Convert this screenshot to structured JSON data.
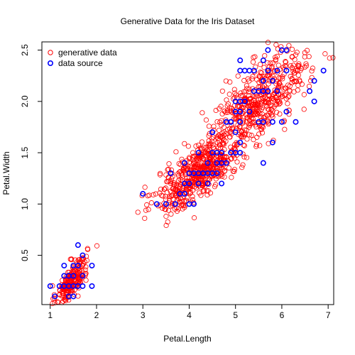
{
  "chart_data": {
    "type": "scatter",
    "title": "Generative Data for the Iris Dataset",
    "xlabel": "Petal.Length",
    "ylabel": "Petal.Width",
    "xlim": [
      0.82,
      7.12
    ],
    "ylim": [
      0.02,
      2.58
    ],
    "x_ticks": [
      1,
      2,
      3,
      4,
      5,
      6,
      7
    ],
    "y_ticks": [
      0.5,
      1.0,
      1.5,
      2.0,
      2.5
    ],
    "legend_position": "top-left",
    "series": [
      {
        "name": "generative data",
        "color": "#ff0000",
        "marker": "open-circle",
        "clusters": [
          {
            "cx": 1.46,
            "cy": 0.25,
            "sx": 0.17,
            "sy": 0.12,
            "n": 220
          },
          {
            "cx": 4.2,
            "cy": 1.3,
            "sx": 0.45,
            "sy": 0.18,
            "n": 500
          },
          {
            "cx": 5.5,
            "cy": 2.0,
            "sx": 0.55,
            "sy": 0.26,
            "n": 520
          }
        ]
      },
      {
        "name": "data source",
        "color": "#0000ff",
        "marker": "open-circle",
        "points": [
          [
            1.0,
            0.2
          ],
          [
            1.1,
            0.1
          ],
          [
            1.2,
            0.2
          ],
          [
            1.3,
            0.2
          ],
          [
            1.3,
            0.3
          ],
          [
            1.3,
            0.4
          ],
          [
            1.4,
            0.1
          ],
          [
            1.4,
            0.2
          ],
          [
            1.4,
            0.3
          ],
          [
            1.5,
            0.1
          ],
          [
            1.5,
            0.2
          ],
          [
            1.5,
            0.3
          ],
          [
            1.5,
            0.4
          ],
          [
            1.6,
            0.2
          ],
          [
            1.6,
            0.4
          ],
          [
            1.6,
            0.6
          ],
          [
            1.7,
            0.2
          ],
          [
            1.7,
            0.3
          ],
          [
            1.7,
            0.5
          ],
          [
            1.9,
            0.2
          ],
          [
            1.9,
            0.4
          ],
          [
            3.0,
            1.1
          ],
          [
            3.3,
            1.0
          ],
          [
            3.5,
            1.0
          ],
          [
            3.6,
            1.3
          ],
          [
            3.7,
            1.0
          ],
          [
            3.8,
            1.1
          ],
          [
            3.9,
            1.1
          ],
          [
            3.9,
            1.2
          ],
          [
            3.9,
            1.4
          ],
          [
            4.0,
            1.0
          ],
          [
            4.0,
            1.2
          ],
          [
            4.0,
            1.3
          ],
          [
            4.1,
            1.0
          ],
          [
            4.1,
            1.3
          ],
          [
            4.2,
            1.2
          ],
          [
            4.2,
            1.3
          ],
          [
            4.2,
            1.5
          ],
          [
            4.3,
            1.3
          ],
          [
            4.4,
            1.2
          ],
          [
            4.4,
            1.3
          ],
          [
            4.4,
            1.4
          ],
          [
            4.5,
            1.3
          ],
          [
            4.5,
            1.5
          ],
          [
            4.5,
            1.7
          ],
          [
            4.6,
            1.3
          ],
          [
            4.6,
            1.4
          ],
          [
            4.6,
            1.5
          ],
          [
            4.7,
            1.2
          ],
          [
            4.7,
            1.4
          ],
          [
            4.7,
            1.5
          ],
          [
            4.8,
            1.4
          ],
          [
            4.8,
            1.8
          ],
          [
            4.9,
            1.5
          ],
          [
            4.9,
            1.8
          ],
          [
            5.0,
            1.5
          ],
          [
            5.0,
            1.7
          ],
          [
            5.1,
            1.6
          ],
          [
            4.5,
            1.7
          ],
          [
            4.8,
            1.8
          ],
          [
            4.9,
            1.8
          ],
          [
            5.0,
            2.0
          ],
          [
            5.0,
            1.9
          ],
          [
            5.1,
            1.5
          ],
          [
            5.1,
            1.8
          ],
          [
            5.1,
            1.9
          ],
          [
            5.1,
            2.0
          ],
          [
            5.1,
            2.3
          ],
          [
            5.1,
            2.4
          ],
          [
            5.2,
            2.0
          ],
          [
            5.2,
            2.3
          ],
          [
            5.3,
            1.9
          ],
          [
            5.3,
            2.3
          ],
          [
            5.4,
            2.1
          ],
          [
            5.4,
            2.3
          ],
          [
            5.5,
            1.8
          ],
          [
            5.5,
            2.1
          ],
          [
            5.6,
            1.4
          ],
          [
            5.6,
            1.8
          ],
          [
            5.6,
            2.1
          ],
          [
            5.6,
            2.2
          ],
          [
            5.6,
            2.4
          ],
          [
            5.7,
            2.1
          ],
          [
            5.7,
            2.3
          ],
          [
            5.7,
            2.5
          ],
          [
            5.8,
            1.6
          ],
          [
            5.8,
            1.8
          ],
          [
            5.8,
            2.2
          ],
          [
            5.9,
            2.1
          ],
          [
            5.9,
            2.3
          ],
          [
            6.0,
            1.8
          ],
          [
            6.0,
            2.5
          ],
          [
            6.1,
            1.9
          ],
          [
            6.1,
            2.3
          ],
          [
            6.1,
            2.5
          ],
          [
            6.3,
            1.8
          ],
          [
            6.6,
            2.1
          ],
          [
            6.7,
            2.0
          ],
          [
            6.7,
            2.2
          ],
          [
            6.9,
            2.3
          ]
        ]
      }
    ]
  }
}
